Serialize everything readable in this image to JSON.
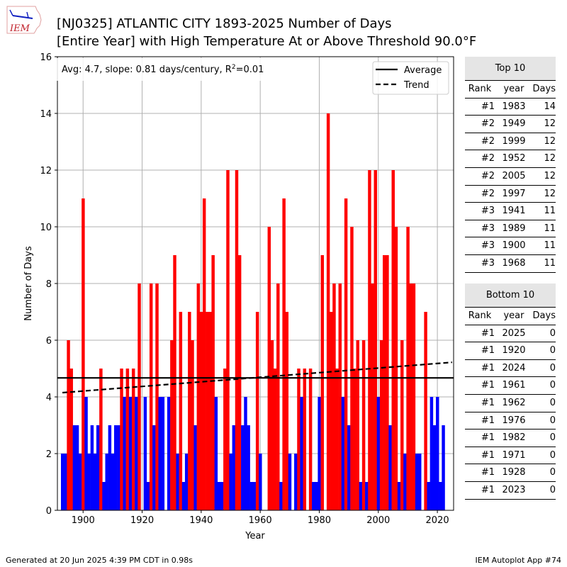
{
  "header": {
    "title_line1": "[NJ0325] ATLANTIC CITY 1893-2025 Number of Days",
    "title_line2": "[Entire Year] with High Temperature At or Above Threshold 90.0°F",
    "logo_text": "IEM"
  },
  "chart_data": {
    "type": "bar",
    "title": "[NJ0325] ATLANTIC CITY 1893-2025 Number of Days [Entire Year] with High Temperature At or Above Threshold 90.0°F",
    "xlabel": "Year",
    "ylabel": "Number of Days",
    "xlim": [
      1891.3,
      2025.5
    ],
    "ylim": [
      0,
      16
    ],
    "xticks": [
      1900,
      1920,
      1940,
      1960,
      1980,
      2000,
      2020
    ],
    "yticks": [
      0,
      2,
      4,
      6,
      8,
      10,
      12,
      14,
      16
    ],
    "grid": true,
    "annotation": "Avg: 4.7, slope: 0.81 days/century, R²=0.01",
    "annotation_parts": {
      "prefix": "Avg: 4.7, slope: 0.81 days/century, R",
      "sup": "2",
      "suffix": "=0.01"
    },
    "average": 4.67,
    "trend": {
      "start_year": 1893,
      "start_value": 4.15,
      "end_year": 2025,
      "end_value": 5.22
    },
    "legend": {
      "position": "top-right",
      "entries": [
        {
          "label": "Average",
          "style": "solid"
        },
        {
          "label": "Trend",
          "style": "dashed"
        }
      ]
    },
    "colors": {
      "above_avg": "#ff0000",
      "below_avg": "#0000ff",
      "average_line": "#000000",
      "trend_line": "#000000",
      "grid": "#b0b0b0"
    },
    "start_year": 1893,
    "values": [
      2,
      2,
      6,
      5,
      3,
      3,
      2,
      11,
      4,
      2,
      3,
      2,
      3,
      5,
      1,
      2,
      3,
      2,
      3,
      3,
      5,
      4,
      5,
      4,
      5,
      4,
      8,
      0,
      4,
      1,
      8,
      3,
      8,
      4,
      4,
      0,
      4,
      6,
      9,
      2,
      7,
      1,
      2,
      7,
      6,
      3,
      8,
      7,
      11,
      7,
      7,
      9,
      4,
      1,
      1,
      5,
      12,
      2,
      3,
      12,
      9,
      3,
      4,
      3,
      1,
      1,
      7,
      2,
      0,
      0,
      10,
      6,
      5,
      8,
      1,
      11,
      7,
      2,
      0,
      2,
      5,
      4,
      5,
      0,
      5,
      1,
      1,
      4,
      9,
      0,
      14,
      7,
      8,
      5,
      8,
      4,
      11,
      3,
      10,
      5,
      6,
      1,
      6,
      1,
      12,
      8,
      12,
      4,
      6,
      9,
      9,
      3,
      12,
      10,
      1,
      6,
      2,
      10,
      8,
      8,
      2,
      2,
      0,
      7,
      1,
      4,
      3,
      4,
      1,
      3,
      0,
      0,
      0
    ]
  },
  "top10": {
    "title": "Top 10",
    "columns": [
      "Rank",
      "year",
      "Days"
    ],
    "rows": [
      [
        "#1",
        "1983",
        "14"
      ],
      [
        "#2",
        "1949",
        "12"
      ],
      [
        "#2",
        "1999",
        "12"
      ],
      [
        "#2",
        "1952",
        "12"
      ],
      [
        "#2",
        "2005",
        "12"
      ],
      [
        "#2",
        "1997",
        "12"
      ],
      [
        "#3",
        "1941",
        "11"
      ],
      [
        "#3",
        "1989",
        "11"
      ],
      [
        "#3",
        "1900",
        "11"
      ],
      [
        "#3",
        "1968",
        "11"
      ]
    ]
  },
  "bottom10": {
    "title": "Bottom 10",
    "columns": [
      "Rank",
      "year",
      "Days"
    ],
    "rows": [
      [
        "#1",
        "2025",
        "0"
      ],
      [
        "#1",
        "1920",
        "0"
      ],
      [
        "#1",
        "2024",
        "0"
      ],
      [
        "#1",
        "1961",
        "0"
      ],
      [
        "#1",
        "1962",
        "0"
      ],
      [
        "#1",
        "1976",
        "0"
      ],
      [
        "#1",
        "1982",
        "0"
      ],
      [
        "#1",
        "1971",
        "0"
      ],
      [
        "#1",
        "1928",
        "0"
      ],
      [
        "#1",
        "2023",
        "0"
      ]
    ]
  },
  "footer": {
    "left": "Generated at 20 Jun 2025 4:39 PM CDT in 0.98s",
    "right": "IEM Autoplot App #74"
  }
}
